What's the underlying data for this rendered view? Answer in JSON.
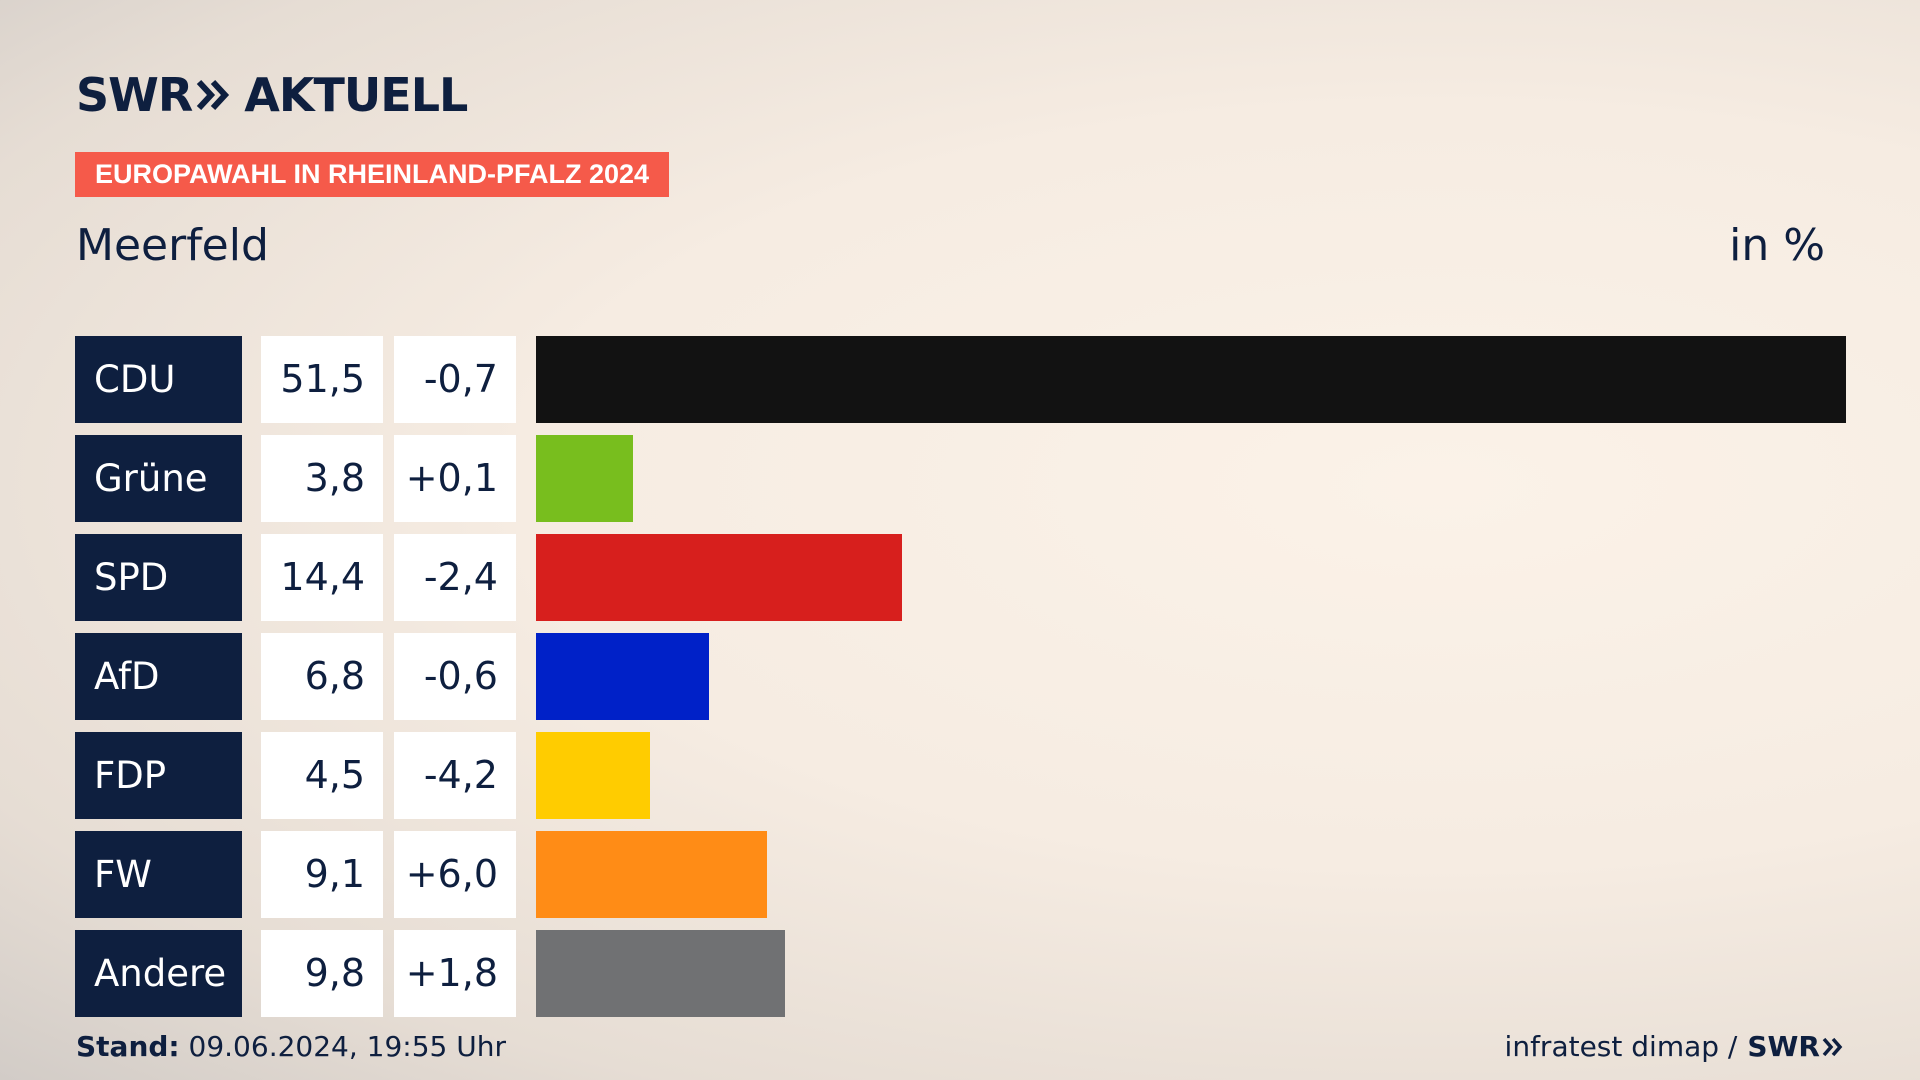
{
  "header": {
    "brand_left": "SWR",
    "brand_right": "AKTUELL",
    "tag": "EUROPAWAHL IN RHEINLAND-PFALZ 2024"
  },
  "chart_data": {
    "type": "bar",
    "title": "Meerfeld",
    "unit": "in %",
    "xlim": [
      0,
      51.5
    ],
    "categories": [
      "CDU",
      "Grüne",
      "SPD",
      "AfD",
      "FDP",
      "FW",
      "Andere"
    ],
    "values": [
      51.5,
      3.8,
      14.4,
      6.8,
      4.5,
      9.1,
      9.8
    ],
    "value_labels": [
      "51,5",
      "3,8",
      "14,4",
      "6,8",
      "4,5",
      "9,1",
      "9,8"
    ],
    "diff_labels": [
      "-0,7",
      "+0,1",
      "-2,4",
      "-0,6",
      "-4,2",
      "+6,0",
      "+1,8"
    ],
    "colors": [
      "#121212",
      "#78be1e",
      "#d71f1d",
      "#0021c8",
      "#ffcc00",
      "#ff8c16",
      "#707173"
    ]
  },
  "footer": {
    "stand_label": "Stand:",
    "stand_value": "09.06.2024, 19:55 Uhr",
    "source": "infratest dimap /",
    "source_brand": "SWR"
  }
}
